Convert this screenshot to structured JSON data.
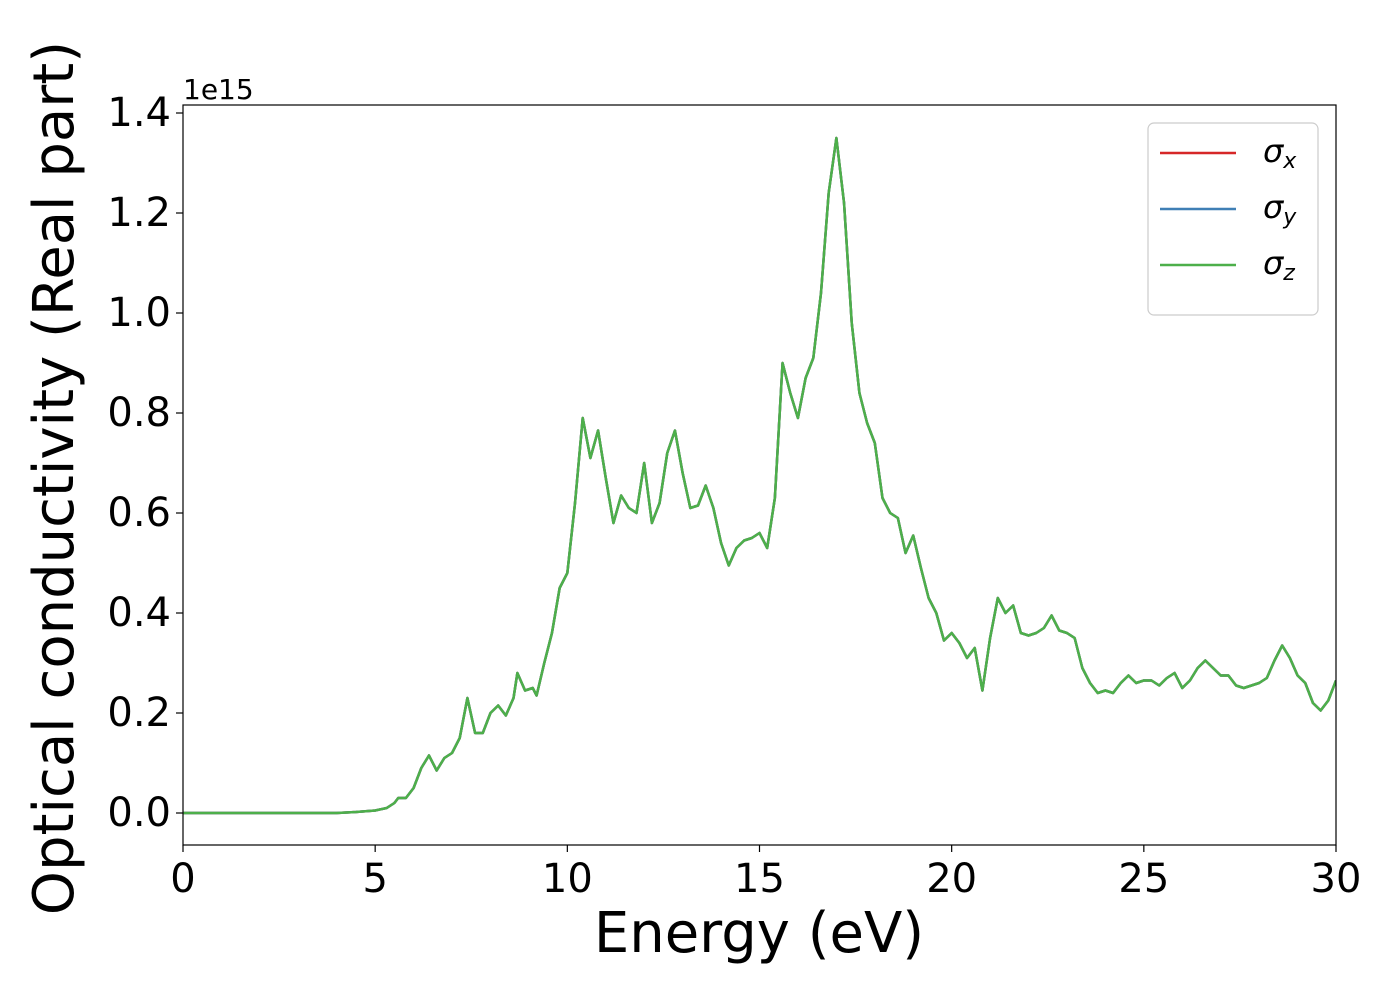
{
  "chart_data": {
    "type": "line",
    "xlabel": "Energy (eV)",
    "ylabel": "Optical conductivity (Real part)",
    "y_offset_label": "1e15",
    "xlim": [
      0,
      30
    ],
    "xticks": [
      0,
      5,
      10,
      15,
      20,
      25,
      30
    ],
    "ylim": [
      -0.064,
      1.416
    ],
    "yticks": [
      {
        "value": 0,
        "label": "0.0"
      },
      {
        "value": 0.2,
        "label": "0.2"
      },
      {
        "value": 0.4,
        "label": "0.4"
      },
      {
        "value": 0.6,
        "label": "0.6"
      },
      {
        "value": 0.8,
        "label": "0.8"
      },
      {
        "value": 1.0,
        "label": "1.0"
      },
      {
        "value": 1.2,
        "label": "1.2"
      },
      {
        "value": 1.4,
        "label": "1.4"
      }
    ],
    "grid": false,
    "legend": "upper right",
    "x": [
      0,
      1,
      2,
      3,
      4,
      4.5,
      5,
      5.3,
      5.5,
      5.6,
      5.8,
      6,
      6.2,
      6.4,
      6.6,
      6.8,
      7,
      7.2,
      7.4,
      7.6,
      7.8,
      8,
      8.2,
      8.4,
      8.6,
      8.7,
      8.9,
      9.1,
      9.2,
      9.4,
      9.6,
      9.8,
      10,
      10.2,
      10.4,
      10.6,
      10.8,
      11,
      11.2,
      11.4,
      11.6,
      11.8,
      12,
      12.2,
      12.4,
      12.6,
      12.8,
      13,
      13.2,
      13.4,
      13.6,
      13.8,
      14,
      14.2,
      14.4,
      14.6,
      14.8,
      15,
      15.2,
      15.4,
      15.6,
      15.8,
      16,
      16.2,
      16.4,
      16.6,
      16.8,
      17,
      17.2,
      17.4,
      17.6,
      17.8,
      18,
      18.2,
      18.4,
      18.6,
      18.8,
      19,
      19.2,
      19.4,
      19.6,
      19.8,
      20,
      20.2,
      20.4,
      20.6,
      20.8,
      21,
      21.2,
      21.4,
      21.6,
      21.8,
      22,
      22.2,
      22.4,
      22.6,
      22.8,
      23,
      23.2,
      23.4,
      23.6,
      23.8,
      24,
      24.2,
      24.4,
      24.6,
      24.8,
      25,
      25.2,
      25.4,
      25.6,
      25.8,
      26,
      26.2,
      26.4,
      26.6,
      26.8,
      27,
      27.2,
      27.4,
      27.6,
      27.8,
      28,
      28.2,
      28.4,
      28.6,
      28.8,
      29,
      29.2,
      29.4,
      29.6,
      29.8,
      30
    ],
    "series": [
      {
        "name": "σx",
        "color": "#d62728",
        "values": [
          0,
          0,
          0,
          0,
          0,
          0.002,
          0.005,
          0.01,
          0.02,
          0.03,
          0.03,
          0.05,
          0.09,
          0.115,
          0.085,
          0.11,
          0.12,
          0.15,
          0.23,
          0.16,
          0.16,
          0.2,
          0.215,
          0.195,
          0.23,
          0.28,
          0.245,
          0.25,
          0.235,
          0.3,
          0.36,
          0.45,
          0.48,
          0.62,
          0.79,
          0.71,
          0.765,
          0.67,
          0.58,
          0.635,
          0.61,
          0.6,
          0.7,
          0.58,
          0.62,
          0.72,
          0.765,
          0.68,
          0.61,
          0.615,
          0.655,
          0.61,
          0.54,
          0.495,
          0.53,
          0.545,
          0.55,
          0.56,
          0.53,
          0.63,
          0.9,
          0.84,
          0.79,
          0.87,
          0.91,
          1.04,
          1.24,
          1.35,
          1.22,
          0.98,
          0.84,
          0.78,
          0.74,
          0.63,
          0.6,
          0.59,
          0.52,
          0.555,
          0.49,
          0.43,
          0.4,
          0.345,
          0.36,
          0.34,
          0.31,
          0.33,
          0.245,
          0.35,
          0.43,
          0.4,
          0.415,
          0.36,
          0.355,
          0.36,
          0.37,
          0.395,
          0.365,
          0.36,
          0.35,
          0.29,
          0.26,
          0.24,
          0.245,
          0.24,
          0.26,
          0.275,
          0.26,
          0.265,
          0.265,
          0.255,
          0.27,
          0.28,
          0.25,
          0.265,
          0.29,
          0.305,
          0.29,
          0.275,
          0.275,
          0.255,
          0.25,
          0.255,
          0.26,
          0.27,
          0.305,
          0.335,
          0.31,
          0.275,
          0.26,
          0.22,
          0.205,
          0.225,
          0.265
        ]
      },
      {
        "name": "σy",
        "color": "#3f7fb5",
        "values": [
          0,
          0,
          0,
          0,
          0,
          0.002,
          0.005,
          0.01,
          0.02,
          0.03,
          0.03,
          0.05,
          0.09,
          0.115,
          0.085,
          0.11,
          0.12,
          0.15,
          0.23,
          0.16,
          0.16,
          0.2,
          0.215,
          0.195,
          0.23,
          0.28,
          0.245,
          0.25,
          0.235,
          0.3,
          0.36,
          0.45,
          0.48,
          0.62,
          0.79,
          0.71,
          0.765,
          0.67,
          0.58,
          0.635,
          0.61,
          0.6,
          0.7,
          0.58,
          0.62,
          0.72,
          0.765,
          0.68,
          0.61,
          0.615,
          0.655,
          0.61,
          0.54,
          0.495,
          0.53,
          0.545,
          0.55,
          0.56,
          0.53,
          0.63,
          0.9,
          0.84,
          0.79,
          0.87,
          0.91,
          1.04,
          1.24,
          1.35,
          1.22,
          0.98,
          0.84,
          0.78,
          0.74,
          0.63,
          0.6,
          0.59,
          0.52,
          0.555,
          0.49,
          0.43,
          0.4,
          0.345,
          0.36,
          0.34,
          0.31,
          0.33,
          0.245,
          0.35,
          0.43,
          0.4,
          0.415,
          0.36,
          0.355,
          0.36,
          0.37,
          0.395,
          0.365,
          0.36,
          0.35,
          0.29,
          0.26,
          0.24,
          0.245,
          0.24,
          0.26,
          0.275,
          0.26,
          0.265,
          0.265,
          0.255,
          0.27,
          0.28,
          0.25,
          0.265,
          0.29,
          0.305,
          0.29,
          0.275,
          0.275,
          0.255,
          0.25,
          0.255,
          0.26,
          0.27,
          0.305,
          0.335,
          0.31,
          0.275,
          0.26,
          0.22,
          0.205,
          0.225,
          0.265
        ]
      },
      {
        "name": "σz",
        "color": "#4daf4a",
        "values": [
          0,
          0,
          0,
          0,
          0,
          0.002,
          0.005,
          0.01,
          0.02,
          0.03,
          0.03,
          0.05,
          0.09,
          0.115,
          0.085,
          0.11,
          0.12,
          0.15,
          0.23,
          0.16,
          0.16,
          0.2,
          0.215,
          0.195,
          0.23,
          0.28,
          0.245,
          0.25,
          0.235,
          0.3,
          0.36,
          0.45,
          0.48,
          0.62,
          0.79,
          0.71,
          0.765,
          0.67,
          0.58,
          0.635,
          0.61,
          0.6,
          0.7,
          0.58,
          0.62,
          0.72,
          0.765,
          0.68,
          0.61,
          0.615,
          0.655,
          0.61,
          0.54,
          0.495,
          0.53,
          0.545,
          0.55,
          0.56,
          0.53,
          0.63,
          0.9,
          0.84,
          0.79,
          0.87,
          0.91,
          1.04,
          1.24,
          1.35,
          1.22,
          0.98,
          0.84,
          0.78,
          0.74,
          0.63,
          0.6,
          0.59,
          0.52,
          0.555,
          0.49,
          0.43,
          0.4,
          0.345,
          0.36,
          0.34,
          0.31,
          0.33,
          0.245,
          0.35,
          0.43,
          0.4,
          0.415,
          0.36,
          0.355,
          0.36,
          0.37,
          0.395,
          0.365,
          0.36,
          0.35,
          0.29,
          0.26,
          0.24,
          0.245,
          0.24,
          0.26,
          0.275,
          0.26,
          0.265,
          0.265,
          0.255,
          0.27,
          0.28,
          0.25,
          0.265,
          0.29,
          0.305,
          0.29,
          0.275,
          0.275,
          0.255,
          0.25,
          0.255,
          0.26,
          0.27,
          0.305,
          0.335,
          0.31,
          0.275,
          0.26,
          0.22,
          0.205,
          0.225,
          0.265
        ]
      }
    ]
  }
}
